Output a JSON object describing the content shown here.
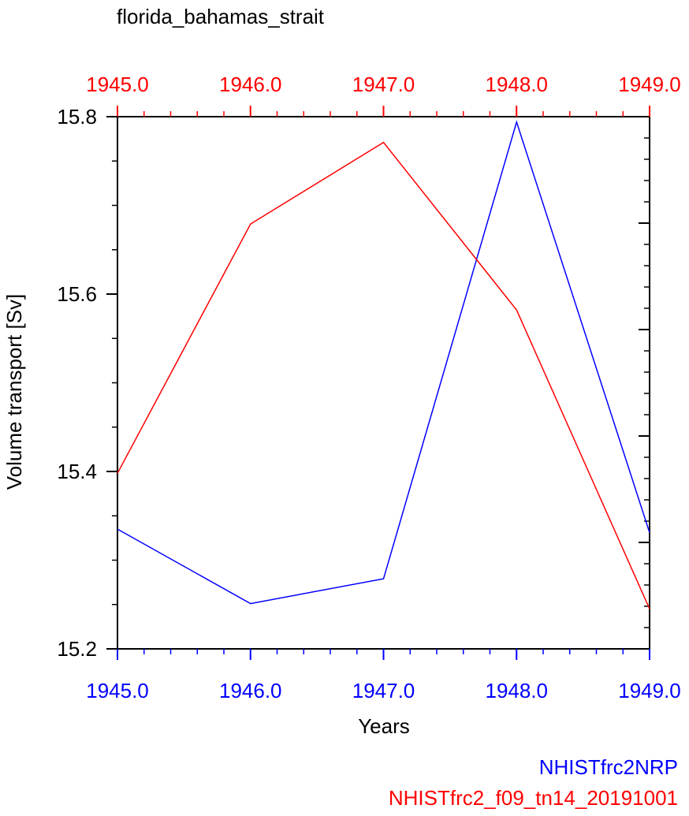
{
  "chart_data": {
    "type": "line",
    "title": "florida_bahamas_strait",
    "xlabel": "Years",
    "ylabel": "Volume transport [Sv]",
    "xlim": [
      1945.0,
      1949.0
    ],
    "ylim": [
      15.2,
      15.8
    ],
    "x_ticks": [
      "1945.0",
      "1946.0",
      "1947.0",
      "1948.0",
      "1949.0"
    ],
    "x_ticks_top": [
      "1945.0",
      "1946.0",
      "1947.0",
      "1948.0",
      "1949.0"
    ],
    "y_ticks": [
      "15.2",
      "15.4",
      "15.6",
      "15.8"
    ],
    "y_tick_values": [
      15.2,
      15.4,
      15.6,
      15.8
    ],
    "right_axis": "secondary y-axis, tick marks only, no labels",
    "grid": false,
    "x": [
      1945.0,
      1946.0,
      1947.0,
      1948.0,
      1949.0
    ],
    "series": [
      {
        "name": "NHISTfrc2NRP",
        "color": "#0000ff",
        "values": [
          15.335,
          15.251,
          15.279,
          15.794,
          15.331
        ]
      },
      {
        "name": "NHISTfrc2_f09_tn14_20191001",
        "color": "#ff0000",
        "values": [
          15.398,
          15.679,
          15.771,
          15.582,
          15.245
        ]
      }
    ],
    "legend": "bottom-right, colored text"
  }
}
